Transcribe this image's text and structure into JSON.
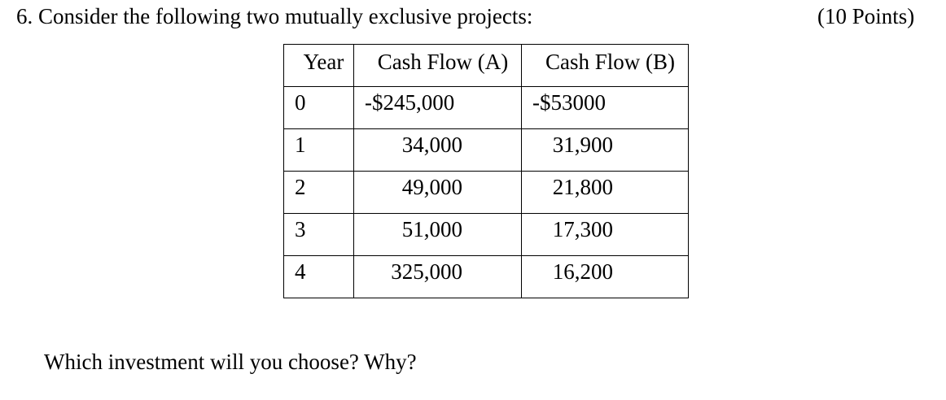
{
  "question": {
    "number_and_text": "6. Consider the following two mutually exclusive projects:",
    "points": "(10 Points)"
  },
  "table": {
    "headers": [
      "Year",
      "Cash Flow (A)",
      "Cash Flow (B)"
    ],
    "rows": [
      {
        "year": "0",
        "a": "-$245,000",
        "b": "-$53000"
      },
      {
        "year": "1",
        "a": "34,000",
        "b": "31,900"
      },
      {
        "year": "2",
        "a": "49,000",
        "b": "21,800"
      },
      {
        "year": "3",
        "a": "51,000",
        "b": "17,300"
      },
      {
        "year": "4",
        "a": "325,000",
        "b": "16,200"
      }
    ]
  },
  "followup": "Which investment will you choose? Why?"
}
